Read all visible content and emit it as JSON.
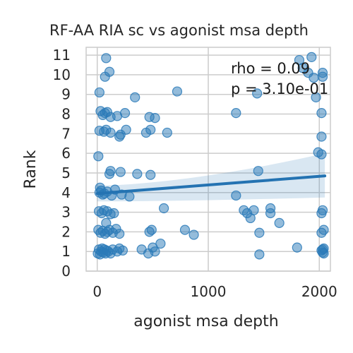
{
  "chart_data": {
    "type": "scatter",
    "title": "RF-AA RIA sc vs agonist msa depth",
    "xlabel": "agonist msa depth",
    "ylabel": "Rank",
    "xlim": [
      -100,
      2100
    ],
    "ylim": [
      0,
      11.4
    ],
    "xticks": [
      0,
      1000,
      2000
    ],
    "yticks": [
      0,
      1,
      2,
      3,
      4,
      5,
      6,
      7,
      8,
      9,
      10,
      11
    ],
    "grid": true,
    "color": "#2a7ab8",
    "annotations": [
      "rho = 0.09",
      "p = 3.10e-01"
    ],
    "regression": {
      "x": [
        0,
        2050
      ],
      "y": [
        3.95,
        4.85
      ],
      "ci_lower": [
        3.55,
        3.75
      ],
      "ci_upper": [
        4.35,
        6.0
      ]
    },
    "points": [
      {
        "x": 5,
        "y": 0.9
      },
      {
        "x": 15,
        "y": 1.1
      },
      {
        "x": 25,
        "y": 0.85
      },
      {
        "x": 35,
        "y": 1.0
      },
      {
        "x": 45,
        "y": 1.15
      },
      {
        "x": 55,
        "y": 0.95
      },
      {
        "x": 65,
        "y": 1.1
      },
      {
        "x": 75,
        "y": 0.9
      },
      {
        "x": 85,
        "y": 1.05
      },
      {
        "x": 100,
        "y": 1.0
      },
      {
        "x": 120,
        "y": 0.9
      },
      {
        "x": 140,
        "y": 1.1
      },
      {
        "x": 180,
        "y": 1.0
      },
      {
        "x": 200,
        "y": 1.15
      },
      {
        "x": 230,
        "y": 1.05
      },
      {
        "x": 10,
        "y": 2.1
      },
      {
        "x": 30,
        "y": 1.95
      },
      {
        "x": 50,
        "y": 2.05
      },
      {
        "x": 70,
        "y": 1.9
      },
      {
        "x": 90,
        "y": 2.0
      },
      {
        "x": 110,
        "y": 2.1
      },
      {
        "x": 140,
        "y": 1.95
      },
      {
        "x": 170,
        "y": 2.15
      },
      {
        "x": 200,
        "y": 1.9
      },
      {
        "x": 15,
        "y": 3.05
      },
      {
        "x": 40,
        "y": 2.95
      },
      {
        "x": 60,
        "y": 3.1
      },
      {
        "x": 90,
        "y": 3.05
      },
      {
        "x": 120,
        "y": 2.9
      },
      {
        "x": 150,
        "y": 2.95
      },
      {
        "x": 80,
        "y": 2.45
      },
      {
        "x": 20,
        "y": 4.0
      },
      {
        "x": 35,
        "y": 4.1
      },
      {
        "x": 50,
        "y": 3.9
      },
      {
        "x": 65,
        "y": 3.95
      },
      {
        "x": 90,
        "y": 4.05
      },
      {
        "x": 130,
        "y": 3.85
      },
      {
        "x": 160,
        "y": 4.15
      },
      {
        "x": 220,
        "y": 3.9
      },
      {
        "x": 290,
        "y": 3.8
      },
      {
        "x": 25,
        "y": 4.25
      },
      {
        "x": 110,
        "y": 4.95
      },
      {
        "x": 120,
        "y": 5.1
      },
      {
        "x": 210,
        "y": 5.05
      },
      {
        "x": 10,
        "y": 5.85
      },
      {
        "x": 20,
        "y": 7.15
      },
      {
        "x": 60,
        "y": 7.1
      },
      {
        "x": 80,
        "y": 7.2
      },
      {
        "x": 120,
        "y": 7.05
      },
      {
        "x": 200,
        "y": 6.85
      },
      {
        "x": 210,
        "y": 6.95
      },
      {
        "x": 260,
        "y": 7.2
      },
      {
        "x": 30,
        "y": 8.15
      },
      {
        "x": 50,
        "y": 7.95
      },
      {
        "x": 70,
        "y": 8.05
      },
      {
        "x": 90,
        "y": 8.1
      },
      {
        "x": 120,
        "y": 7.85
      },
      {
        "x": 180,
        "y": 7.9
      },
      {
        "x": 250,
        "y": 8.05
      },
      {
        "x": 20,
        "y": 9.1
      },
      {
        "x": 70,
        "y": 9.9
      },
      {
        "x": 110,
        "y": 10.15
      },
      {
        "x": 80,
        "y": 10.85
      },
      {
        "x": 360,
        "y": 4.95
      },
      {
        "x": 480,
        "y": 4.9
      },
      {
        "x": 400,
        "y": 1.1
      },
      {
        "x": 460,
        "y": 0.9
      },
      {
        "x": 500,
        "y": 1.2
      },
      {
        "x": 520,
        "y": 1.0
      },
      {
        "x": 470,
        "y": 2.0
      },
      {
        "x": 490,
        "y": 2.1
      },
      {
        "x": 570,
        "y": 1.4
      },
      {
        "x": 600,
        "y": 3.2
      },
      {
        "x": 630,
        "y": 7.05
      },
      {
        "x": 440,
        "y": 7.05
      },
      {
        "x": 480,
        "y": 7.2
      },
      {
        "x": 470,
        "y": 7.85
      },
      {
        "x": 520,
        "y": 7.8
      },
      {
        "x": 340,
        "y": 8.85
      },
      {
        "x": 720,
        "y": 9.15
      },
      {
        "x": 790,
        "y": 2.1
      },
      {
        "x": 870,
        "y": 1.85
      },
      {
        "x": 1250,
        "y": 8.05
      },
      {
        "x": 1250,
        "y": 3.85
      },
      {
        "x": 1320,
        "y": 3.1
      },
      {
        "x": 1350,
        "y": 2.95
      },
      {
        "x": 1380,
        "y": 2.7
      },
      {
        "x": 1410,
        "y": 3.1
      },
      {
        "x": 1440,
        "y": 9.05
      },
      {
        "x": 1450,
        "y": 5.1
      },
      {
        "x": 1460,
        "y": 1.95
      },
      {
        "x": 1460,
        "y": 0.85
      },
      {
        "x": 1560,
        "y": 3.2
      },
      {
        "x": 1560,
        "y": 2.95
      },
      {
        "x": 1640,
        "y": 2.45
      },
      {
        "x": 1800,
        "y": 1.2
      },
      {
        "x": 1820,
        "y": 10.75
      },
      {
        "x": 1850,
        "y": 10.35
      },
      {
        "x": 1900,
        "y": 10.1
      },
      {
        "x": 1930,
        "y": 10.9
      },
      {
        "x": 1950,
        "y": 9.85
      },
      {
        "x": 1970,
        "y": 8.85
      },
      {
        "x": 1990,
        "y": 6.05
      },
      {
        "x": 2030,
        "y": 10.1
      },
      {
        "x": 2030,
        "y": 9.9
      },
      {
        "x": 2020,
        "y": 8.05
      },
      {
        "x": 2020,
        "y": 6.85
      },
      {
        "x": 2020,
        "y": 5.95
      },
      {
        "x": 2030,
        "y": 3.1
      },
      {
        "x": 2020,
        "y": 2.95
      },
      {
        "x": 2040,
        "y": 2.1
      },
      {
        "x": 2020,
        "y": 1.95
      },
      {
        "x": 2030,
        "y": 1.1
      },
      {
        "x": 2040,
        "y": 0.9
      },
      {
        "x": 2020,
        "y": 1.05
      },
      {
        "x": 2030,
        "y": 0.95
      },
      {
        "x": 2040,
        "y": 1.15
      }
    ]
  }
}
